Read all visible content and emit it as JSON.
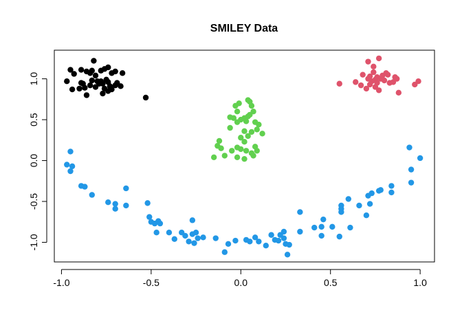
{
  "chart_data": {
    "type": "scatter",
    "title": "SMILEY Data",
    "xlabel": "",
    "ylabel": "",
    "xlim": [
      -1.04,
      1.08
    ],
    "ylim": [
      -1.24,
      1.35
    ],
    "xticks": [
      -1.0,
      -0.5,
      0.0,
      0.5,
      1.0
    ],
    "xtick_labels": [
      "-1.0",
      "-0.5",
      "0.0",
      "0.5",
      "1.0"
    ],
    "yticks": [
      -1.0,
      -0.5,
      0.0,
      0.5,
      1.0
    ],
    "ytick_labels": [
      "-1.0",
      "-0.5",
      "0.0",
      "0.5",
      "1.0"
    ],
    "grid": false,
    "legend": "none",
    "series": [
      {
        "color": "#000000",
        "points": [
          [
            -0.95,
            1.11
          ],
          [
            -0.93,
            1.06
          ],
          [
            -0.89,
            1.11
          ],
          [
            -0.86,
            1.09
          ],
          [
            -0.84,
            1.07
          ],
          [
            -0.83,
            1.1
          ],
          [
            -0.82,
            1.22
          ],
          [
            -0.81,
            1.04
          ],
          [
            -0.78,
            1.1
          ],
          [
            -0.76,
            1.12
          ],
          [
            -0.74,
            1.14
          ],
          [
            -0.72,
            1.07
          ],
          [
            -0.7,
            1.09
          ],
          [
            -0.66,
            1.07
          ],
          [
            -0.97,
            0.97
          ],
          [
            -0.94,
            0.87
          ],
          [
            -0.9,
            0.88
          ],
          [
            -0.89,
            0.95
          ],
          [
            -0.87,
            0.89
          ],
          [
            -0.84,
            0.92
          ],
          [
            -0.83,
            0.98
          ],
          [
            -0.81,
            0.9
          ],
          [
            -0.79,
            0.94
          ],
          [
            -0.78,
            0.97
          ],
          [
            -0.77,
            0.94
          ],
          [
            -0.76,
            0.88
          ],
          [
            -0.75,
            0.99
          ],
          [
            -0.74,
            0.96
          ],
          [
            -0.73,
            0.91
          ],
          [
            -0.72,
            0.87
          ],
          [
            -0.7,
            0.92
          ],
          [
            -0.69,
            0.95
          ],
          [
            -0.67,
            0.91
          ],
          [
            -0.86,
            0.8
          ],
          [
            -0.77,
            0.82
          ],
          [
            -0.74,
            0.85
          ],
          [
            -0.88,
            0.94
          ],
          [
            -0.8,
            0.97
          ],
          [
            -0.53,
            0.77
          ]
        ]
      },
      {
        "color": "#df536b",
        "points": [
          [
            0.55,
            0.94
          ],
          [
            0.64,
            0.96
          ],
          [
            0.68,
            1.05
          ],
          [
            0.7,
            0.88
          ],
          [
            0.71,
            1.0
          ],
          [
            0.72,
            1.03
          ],
          [
            0.72,
            0.93
          ],
          [
            0.73,
            0.97
          ],
          [
            0.74,
            1.08
          ],
          [
            0.74,
            1.15
          ],
          [
            0.75,
            0.99
          ],
          [
            0.75,
            0.9
          ],
          [
            0.76,
            0.95
          ],
          [
            0.76,
            1.02
          ],
          [
            0.77,
            0.86
          ],
          [
            0.77,
            1.25
          ],
          [
            0.78,
            1.0
          ],
          [
            0.79,
            1.04
          ],
          [
            0.8,
            0.98
          ],
          [
            0.81,
            1.07
          ],
          [
            0.82,
            1.05
          ],
          [
            0.83,
            0.95
          ],
          [
            0.85,
            0.96
          ],
          [
            0.86,
            1.02
          ],
          [
            0.87,
            1.0
          ],
          [
            0.88,
            0.83
          ],
          [
            0.71,
            1.21
          ],
          [
            0.97,
            0.93
          ],
          [
            0.99,
            0.97
          ],
          [
            0.67,
            0.92
          ]
        ]
      },
      {
        "color": "#61d04f",
        "points": [
          [
            -0.01,
            0.7
          ],
          [
            -0.03,
            0.67
          ],
          [
            -0.02,
            0.6
          ],
          [
            0.04,
            0.74
          ],
          [
            0.05,
            0.72
          ],
          [
            0.06,
            0.67
          ],
          [
            0.07,
            0.6
          ],
          [
            0.05,
            0.56
          ],
          [
            0.02,
            0.52
          ],
          [
            0.03,
            0.48
          ],
          [
            0.04,
            0.54
          ],
          [
            0.08,
            0.47
          ],
          [
            0.1,
            0.44
          ],
          [
            0.09,
            0.38
          ],
          [
            -0.06,
            0.53
          ],
          [
            -0.04,
            0.52
          ],
          [
            -0.02,
            0.47
          ],
          [
            -0.06,
            0.4
          ],
          [
            0.0,
            0.5
          ],
          [
            0.06,
            0.35
          ],
          [
            0.12,
            0.33
          ],
          [
            0.02,
            0.36
          ],
          [
            0.04,
            0.3
          ],
          [
            0.0,
            0.28
          ],
          [
            -0.12,
            0.24
          ],
          [
            -0.13,
            0.18
          ],
          [
            -0.11,
            0.15
          ],
          [
            -0.05,
            0.12
          ],
          [
            -0.02,
            0.16
          ],
          [
            0.0,
            0.14
          ],
          [
            0.03,
            0.12
          ],
          [
            0.06,
            0.09
          ],
          [
            0.08,
            0.17
          ],
          [
            0.09,
            0.12
          ],
          [
            -0.15,
            0.04
          ],
          [
            -0.09,
            0.06
          ],
          [
            -0.02,
            0.04
          ],
          [
            0.02,
            0.02
          ],
          [
            0.07,
            0.06
          ],
          [
            0.02,
            0.23
          ]
        ]
      },
      {
        "color": "#2297e6",
        "points": [
          [
            -0.97,
            -0.05
          ],
          [
            -0.95,
            -0.13
          ],
          [
            -0.95,
            0.11
          ],
          [
            -0.94,
            -0.07
          ],
          [
            -0.89,
            -0.31
          ],
          [
            -0.87,
            -0.32
          ],
          [
            -0.83,
            -0.42
          ],
          [
            -0.74,
            -0.51
          ],
          [
            -0.7,
            -0.59
          ],
          [
            -0.7,
            -0.53
          ],
          [
            -0.64,
            -0.55
          ],
          [
            -0.64,
            -0.34
          ],
          [
            -0.52,
            -0.52
          ],
          [
            -0.51,
            -0.69
          ],
          [
            -0.5,
            -0.75
          ],
          [
            -0.48,
            -0.77
          ],
          [
            -0.46,
            -0.74
          ],
          [
            -0.45,
            -0.77
          ],
          [
            -0.47,
            -0.88
          ],
          [
            -0.4,
            -0.88
          ],
          [
            -0.37,
            -0.96
          ],
          [
            -0.33,
            -0.88
          ],
          [
            -0.31,
            -0.92
          ],
          [
            -0.29,
            -0.99
          ],
          [
            -0.27,
            -0.73
          ],
          [
            -0.27,
            -0.9
          ],
          [
            -0.26,
            -1.01
          ],
          [
            -0.25,
            -0.88
          ],
          [
            -0.24,
            -0.95
          ],
          [
            -0.21,
            -0.94
          ],
          [
            -0.14,
            -0.95
          ],
          [
            -0.09,
            -1.12
          ],
          [
            -0.07,
            -1.02
          ],
          [
            -0.03,
            -0.98
          ],
          [
            0.03,
            -0.97
          ],
          [
            0.05,
            -0.99
          ],
          [
            0.08,
            -0.94
          ],
          [
            0.1,
            -0.99
          ],
          [
            0.14,
            -1.04
          ],
          [
            0.17,
            -0.91
          ],
          [
            0.19,
            -0.97
          ],
          [
            0.21,
            -0.98
          ],
          [
            0.22,
            -0.91
          ],
          [
            0.24,
            -0.87
          ],
          [
            0.24,
            -0.95
          ],
          [
            0.25,
            -1.02
          ],
          [
            0.26,
            -1.15
          ],
          [
            0.27,
            -1.03
          ],
          [
            0.33,
            -0.87
          ],
          [
            0.33,
            -0.63
          ],
          [
            0.41,
            -0.82
          ],
          [
            0.45,
            -0.81
          ],
          [
            0.45,
            -0.92
          ],
          [
            0.46,
            -0.72
          ],
          [
            0.51,
            -0.81
          ],
          [
            0.55,
            -0.93
          ],
          [
            0.56,
            -0.59
          ],
          [
            0.56,
            -0.63
          ],
          [
            0.56,
            -0.55
          ],
          [
            0.6,
            -0.47
          ],
          [
            0.61,
            -0.82
          ],
          [
            0.66,
            -0.55
          ],
          [
            0.7,
            -0.67
          ],
          [
            0.71,
            -0.43
          ],
          [
            0.72,
            -0.53
          ],
          [
            0.73,
            -0.4
          ],
          [
            0.77,
            -0.37
          ],
          [
            0.78,
            -0.36
          ],
          [
            0.84,
            -0.31
          ],
          [
            0.84,
            -0.39
          ],
          [
            0.94,
            0.16
          ],
          [
            0.95,
            -0.11
          ],
          [
            0.95,
            -0.27
          ],
          [
            1.0,
            0.03
          ]
        ]
      }
    ]
  }
}
